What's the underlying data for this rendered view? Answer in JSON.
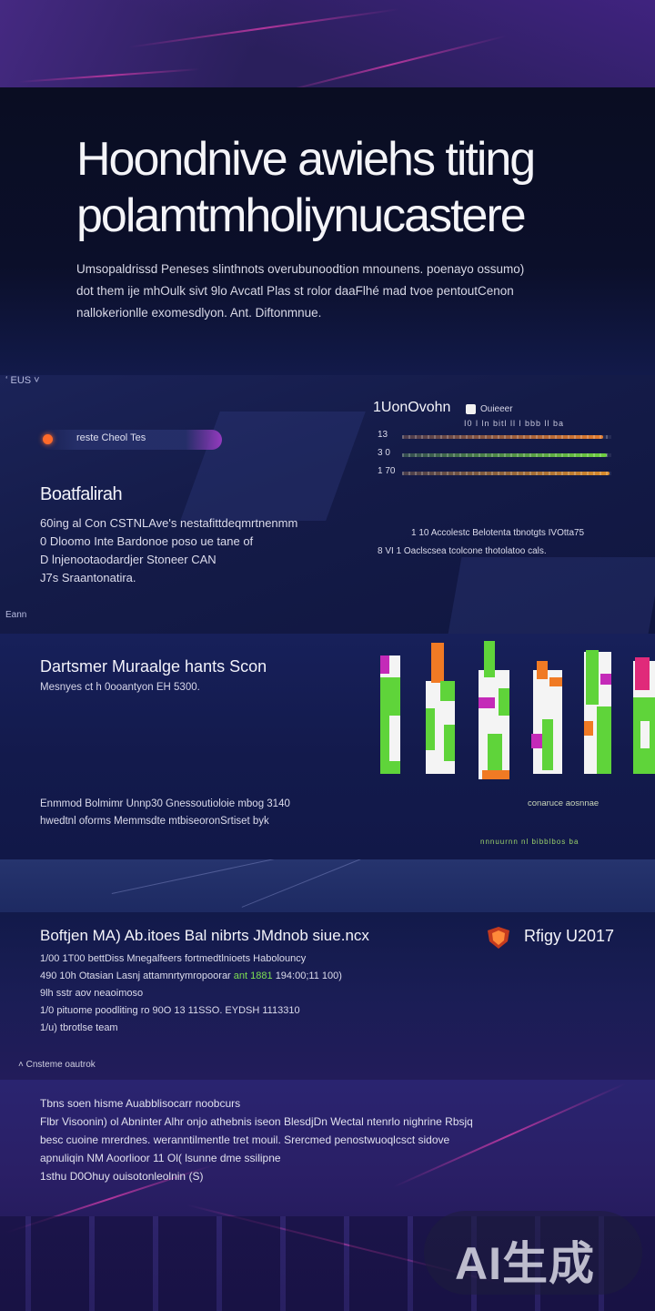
{
  "hero": {
    "title_line1": "Hoondnive awiehs titing",
    "title_line2": "polamtmholiynucastere",
    "body": [
      "Umsopaldrissd Peneses slinthnots overubunoodtion mnounens. poenayo ossumo)",
      "dot them ije mhOulk sivt 9lo Avcatl Plas st rolor daaFlhé mad tvoe pentoutCenon",
      "nallokerionlle exomesdlyon. Ant. Diftonmnue."
    ]
  },
  "section2": {
    "top_mark": "ʻ EUS ˅",
    "pill_label": "reste Cheol Tes",
    "title": "Boatfalirah",
    "body": [
      "60ing al Con CSTNLAve's nestafittdeqmrtnenmm",
      "0 Dloomo Inte Bardonoe poso ue tane of",
      "D lnjenootaodardjer Stoneer CAN",
      "J7s Sraantonatira."
    ],
    "foot_mark": "Eann",
    "bars_title": "1UonOvohn",
    "bars_badge_label": "Ouieeer",
    "bars_subtitle": "I0 l ln bitl ll l bbb ll ba",
    "bars": [
      {
        "label": "13",
        "value": 0.96,
        "color": "#e07a2c"
      },
      {
        "label": "3 0",
        "value": 0.98,
        "color": "#6dcf3e"
      },
      {
        "label": "1 70",
        "value": 0.99,
        "color": "#d98a2a"
      }
    ],
    "note1": "1 10 Accolestc Belotenta tbnotgts IVOtta75",
    "note2": "8 VI 1 Oaclscsea tcolcone thotolatoo cals."
  },
  "section3": {
    "title": "Dartsmer Muraalge hants Scon",
    "subtitle": "Mesnyes ct h 0ooantyon EH 5300.",
    "body": [
      "Enmmod Bolmimr Unnp30 Gnessoutioloie mbog 3140",
      "hwedtnl oforms Memmsdte mtbiseoronSrtiset byk"
    ],
    "right_caption": "conaruce aosnnae",
    "right_axis": "nnnuurnn nl bibblbos ba"
  },
  "section4": {
    "title": "Boftjen MA) Ab.itoes Bal nibrts JMdnob siue.ncx",
    "brand": "Rfigy U2017",
    "list": [
      {
        "text": "1/00 1T00 bettDiss Mnegalfeers fortmedtlnioets Habolouncy",
        "hi": ""
      },
      {
        "text": "490 10h Otasian Lasnj attamnrtymropoorar",
        "hi": "ant 1881",
        "tail": "194:00;11 100)"
      },
      {
        "text": "9lh sstr aov neaoimoso",
        "hi": ""
      },
      {
        "text": "1/0 pituome poodliting ro 90O 13 11SSO. EYDSH 1113310",
        "hi": ""
      },
      {
        "text": "1/u) tbrotlse team",
        "hi": ""
      }
    ],
    "foot": "Cnsteme oautrok"
  },
  "section5": {
    "body": [
      "Tbns soen hisme Auabblisocarr noobcurs",
      "Flbr Visoonin) ol Abninter Alhr onjo athebnis iseon BlesdjDn Wectal ntenrlo nighrine Rbsjq",
      "besc cuoine mrerdnes. weranntilmentle tret mouil. Srercmed penostwuoqlcsct sidove",
      "apnuliqin NM Aoorlioor 11 Ol( lsunne dme ssilipne",
      "1sthu D0Ohuy ouisotonleolnin (S)"
    ]
  },
  "watermark": "AI生成",
  "colors": {
    "accent_orange": "#ff6a2a",
    "accent_green": "#6dcf3e",
    "accent_magenta": "#d23caa",
    "hero_bg": "#0a0d22"
  }
}
